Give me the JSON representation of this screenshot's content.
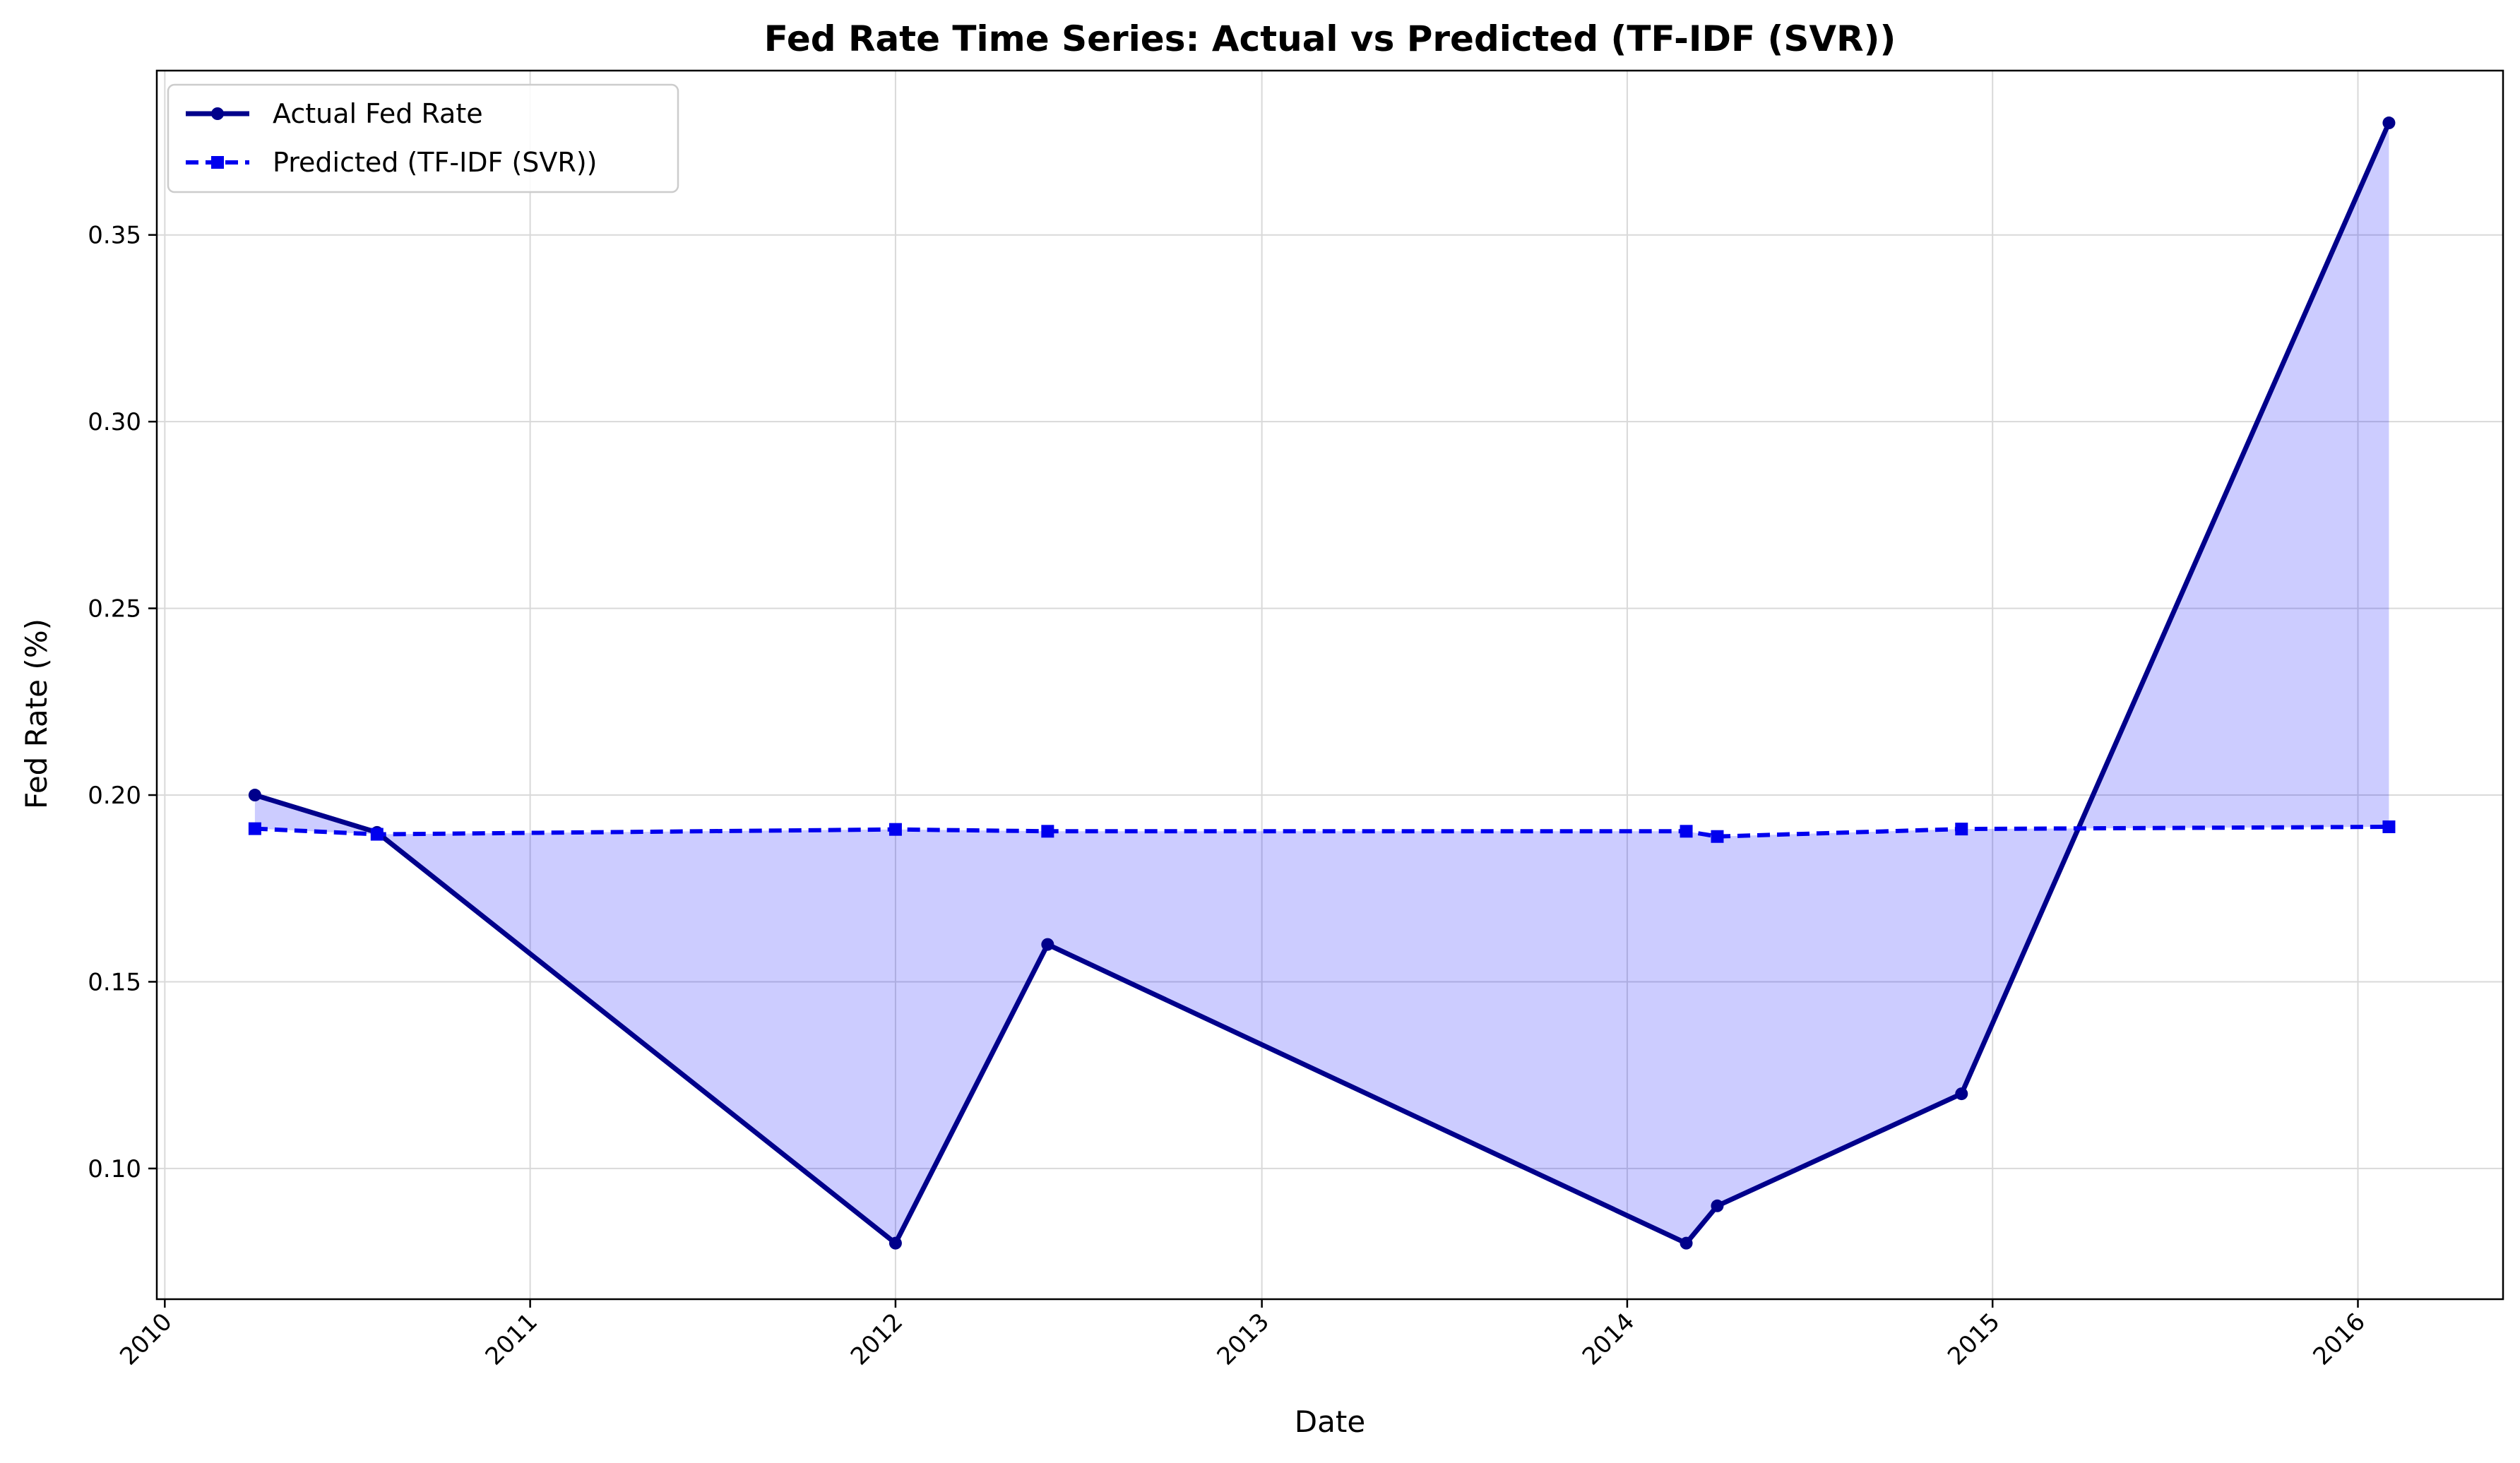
{
  "chart_data": {
    "type": "line",
    "title": "Fed Rate Time Series: Actual vs Predicted (TF-IDF (SVR))",
    "xlabel": "Date",
    "ylabel": "Fed Rate (%)",
    "xlim": [
      "2009-12-24",
      "2016-05-25"
    ],
    "ylim": [
      0.065,
      0.394
    ],
    "x_ticks": [
      "2010",
      "2011",
      "2012",
      "2013",
      "2014",
      "2015",
      "2016"
    ],
    "y_ticks": [
      "0.10",
      "0.15",
      "0.20",
      "0.25",
      "0.30",
      "0.35"
    ],
    "grid": true,
    "legend_position": "top-left",
    "fill_between_series": true,
    "series": [
      {
        "name": "Actual Fed Rate",
        "color": "#00008b",
        "style": "solid",
        "marker": "circle",
        "x": [
          "2010-04-01",
          "2010-08-01",
          "2012-01-01",
          "2012-06-01",
          "2014-03-01",
          "2014-04-01",
          "2014-12-01",
          "2016-02-01"
        ],
        "y": [
          0.2,
          0.19,
          0.08,
          0.16,
          0.08,
          0.09,
          0.12,
          0.38
        ]
      },
      {
        "name": "Predicted (TF-IDF (SVR))",
        "color": "#0000ee",
        "style": "dashed",
        "marker": "square",
        "x": [
          "2010-04-01",
          "2010-08-01",
          "2012-01-01",
          "2012-06-01",
          "2014-03-01",
          "2014-04-01",
          "2014-12-01",
          "2016-02-01"
        ],
        "y": [
          0.191,
          0.1895,
          0.1908,
          0.1903,
          0.1903,
          0.1889,
          0.1909,
          0.1915
        ]
      }
    ],
    "fill_color": "#0000ff",
    "frame_color": "#000000",
    "grid_color": "#d9d9d9"
  }
}
